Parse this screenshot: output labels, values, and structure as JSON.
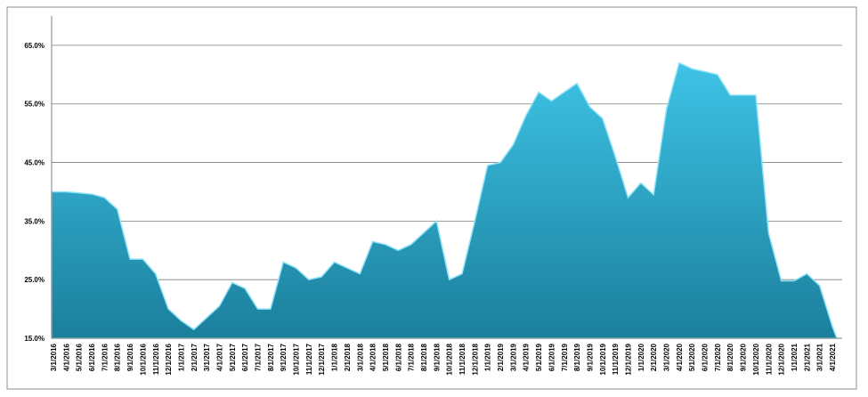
{
  "chart_data": {
    "type": "area",
    "color": "#2aa6c8",
    "grid": true,
    "categories": [
      "3/1/2016",
      "4/1/2016",
      "5/1/2016",
      "6/1/2016",
      "7/1/2016",
      "8/1/2016",
      "9/1/2016",
      "10/1/2016",
      "11/1/2016",
      "12/1/2016",
      "1/1/2017",
      "2/1/2017",
      "3/1/2017",
      "4/1/2017",
      "5/1/2017",
      "6/1/2017",
      "7/1/2017",
      "8/1/2017",
      "9/1/2017",
      "10/1/2017",
      "11/1/2017",
      "12/1/2017",
      "1/1/2018",
      "2/1/2018",
      "3/1/2018",
      "4/1/2018",
      "5/1/2018",
      "6/1/2018",
      "7/1/2018",
      "8/1/2018",
      "9/1/2018",
      "10/1/2018",
      "11/1/2018",
      "12/1/2018",
      "1/1/2019",
      "2/1/2019",
      "3/1/2019",
      "4/1/2019",
      "5/1/2019",
      "6/1/2019",
      "7/1/2019",
      "8/1/2019",
      "9/1/2019",
      "10/1/2019",
      "11/1/2019",
      "12/1/2019",
      "1/1/2020",
      "2/1/2020",
      "3/1/2020",
      "4/1/2020",
      "5/1/2020",
      "6/1/2020",
      "7/1/2020",
      "8/1/2020",
      "9/1/2020",
      "10/1/2020",
      "11/1/2020",
      "12/1/2020",
      "1/1/2021",
      "2/1/2021",
      "3/1/2021",
      "4/1/2021"
    ],
    "values": [
      40,
      40,
      39.8,
      39.6,
      39,
      37,
      28.5,
      28.5,
      26,
      20,
      18,
      16.5,
      18.5,
      20.5,
      24.5,
      23.5,
      20,
      20,
      28,
      27,
      25,
      25.5,
      28,
      27,
      26,
      31.5,
      31,
      30,
      31,
      33,
      35,
      25,
      26,
      35,
      44.5,
      45,
      48,
      53,
      57,
      55.5,
      57,
      58.5,
      54.5,
      52.5,
      46,
      39,
      41.5,
      39.5,
      54,
      62,
      61,
      60.5,
      60,
      56.5,
      56.5,
      56.5,
      33,
      24.8,
      24.8,
      26,
      24,
      17
    ],
    "ylim": [
      15,
      70
    ],
    "yticks": [
      {
        "value": 15,
        "label": "15.0%"
      },
      {
        "value": 25,
        "label": "25.0%"
      },
      {
        "value": 35,
        "label": "35.0%"
      },
      {
        "value": 45,
        "label": "45.0%"
      },
      {
        "value": 55,
        "label": "55.0%"
      },
      {
        "value": 65,
        "label": "65.0%"
      }
    ]
  }
}
